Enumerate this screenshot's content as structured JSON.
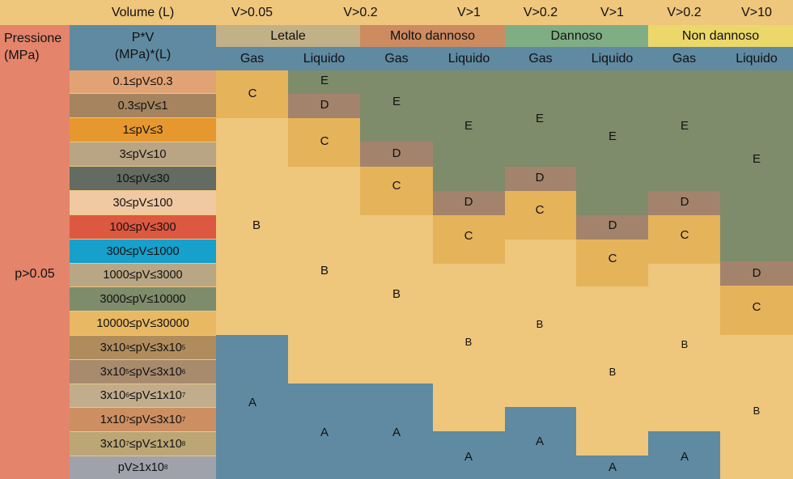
{
  "header": {
    "volume_label": "Volume (L)",
    "volume_limits": [
      "V>0.05",
      "V>0.2",
      "V>1",
      "V>0.2",
      "V>1",
      "V>0.2",
      "V>10"
    ],
    "pressure_label_line1": "Pressione",
    "pressure_label_line2": "(MPa)",
    "pv_label_line1": "P*V",
    "pv_label_line2": "(MPa)*(L)",
    "pressure_condition": "p>0.05"
  },
  "categories": [
    {
      "label": "Letale",
      "color": "#c2b087"
    },
    {
      "label": "Molto dannoso",
      "color": "#cd8b60"
    },
    {
      "label": "Dannoso",
      "color": "#80ae84"
    },
    {
      "label": "Non dannoso",
      "color": "#ecd86a"
    }
  ],
  "phases": [
    "Gas",
    "Liquido",
    "Gas",
    "Liquido",
    "Gas",
    "Liquido",
    "Gas",
    "Liquido"
  ],
  "pv_ranges": [
    {
      "base": "0.1≤pV≤0.3",
      "color": "#e2a374"
    },
    {
      "base": "0.3≤pV≤1",
      "color": "#a5845f"
    },
    {
      "base": "1≤pV≤3",
      "color": "#e6982e"
    },
    {
      "base": "3≤pV≤10",
      "color": "#b9a584"
    },
    {
      "base": "10≤pV≤30",
      "color": "#636b62"
    },
    {
      "base": "30≤pV≤100",
      "color": "#f0c9a3"
    },
    {
      "base": "100≤pV≤300",
      "color": "#dd5840"
    },
    {
      "base": "300≤pV≤1000",
      "color": "#16a0cb"
    },
    {
      "base": "1000≤pV≤3000",
      "color": "#b9a684"
    },
    {
      "base": "3000≤pV≤10000",
      "color": "#7e8c6c"
    },
    {
      "base": "10000≤pV≤30000",
      "color": "#e8b863"
    },
    {
      "base": "3x10",
      "e1": "4",
      "mid": "≤pV≤3x10",
      "e2": "5",
      "color": "#b08c5c"
    },
    {
      "base": "3x10",
      "e1": "5",
      "mid": "≤pV≤3x10",
      "e2": "6",
      "color": "#a88a6d"
    },
    {
      "base": "3x10",
      "e1": "6",
      "mid": "≤pV≤1x10",
      "e2": "7",
      "color": "#c1ad8b"
    },
    {
      "base": "1x10",
      "e1": "7",
      "mid": "≤pV≤3x10",
      "e2": "7",
      "color": "#cd8f62"
    },
    {
      "base": "3x10",
      "e1": "7",
      "mid": "≤pV≤1x10",
      "e2": "8",
      "color": "#bca675"
    },
    {
      "base": "pV≥1x10",
      "e1": "8",
      "color": "#9fa1ab"
    }
  ],
  "grades": {
    "A": "A",
    "B": "B",
    "C": "C",
    "D": "D",
    "E": "E"
  },
  "grade_colors": {
    "A": "#5f8aa1",
    "B": "#eec67c",
    "C": "#e5b35a",
    "D": "#a4836c",
    "E": "#7e8c6c"
  },
  "theme": {
    "volume_header_bg": "#eec67c",
    "phase_header_bg": "#5f8aa1",
    "pressure_col_bg": "#e4846b"
  }
}
